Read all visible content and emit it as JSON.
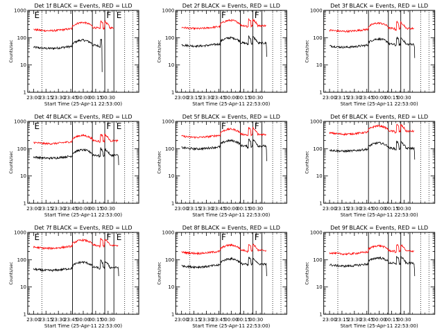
{
  "chart_data": [
    {
      "type": "line",
      "title": "Det 1f BLACK = Events, RED = LLD",
      "xlabel": "Start Time (25-Apr-11 22:53:00)",
      "ylabel": "Counts/sec",
      "yscale": "log",
      "ylim": [
        1,
        1000
      ],
      "ytick_labels": [
        "1",
        "10",
        "100",
        "1000"
      ],
      "x_tick_labels": [
        "23:00",
        "23:15",
        "23:30",
        "23:45",
        "00:00",
        "00:15",
        "00:30"
      ],
      "series": [
        {
          "name": "Events",
          "color": "#000000",
          "base": 45,
          "ends_at_min": 82,
          "end_drop": [
            48,
            5.5
          ]
        },
        {
          "name": "LLD",
          "color": "#ff0000",
          "base": 200,
          "ends_at_min": 97
        }
      ],
      "dotted_lines_min": [
        10,
        110,
        120
      ],
      "solid_lines_min": [
        47,
        71,
        86,
        97
      ],
      "markers": [
        {
          "text": "E",
          "x_min": 1
        },
        {
          "text": "F",
          "x_min": 88
        },
        {
          "text": "E",
          "x_min": 100
        }
      ]
    },
    {
      "type": "line",
      "title": "Det 2f BLACK = Events, RED = LLD",
      "xlabel": "Start Time (25-Apr-11 22:53:00)",
      "ylabel": "Counts/sec",
      "yscale": "log",
      "ylim": [
        1,
        1000
      ],
      "ytick_labels": [
        "1",
        "10",
        "100",
        "1000"
      ],
      "x_tick_labels": [
        "23:00",
        "23:15",
        "23:30",
        "23:45",
        "00:00",
        "00:15",
        "00:30"
      ],
      "series": [
        {
          "name": "Events",
          "color": "#000000",
          "base": 55,
          "ends_at_min": 102,
          "end_drop": [
            45,
            20
          ]
        },
        {
          "name": "LLD",
          "color": "#ff0000",
          "base": 240,
          "ends_at_min": 102
        }
      ],
      "dotted_lines_min": [
        10,
        110,
        120
      ],
      "solid_lines_min": [
        47,
        71,
        86,
        97
      ],
      "markers": [
        {
          "text": "F",
          "x_min": 48
        },
        {
          "text": "F",
          "x_min": 88
        }
      ]
    },
    {
      "type": "line",
      "title": "Det 3f BLACK = Events, RED = LLD",
      "xlabel": "Start Time (25-Apr-11 22:53:00)",
      "ylabel": "Counts/sec",
      "yscale": "log",
      "ylim": [
        1,
        1000
      ],
      "ytick_labels": [
        "1",
        "10",
        "100",
        "1000"
      ],
      "x_tick_labels": [
        "23:00",
        "23:15",
        "23:30",
        "23:45",
        "00:00",
        "00:15",
        "00:30"
      ],
      "series": [
        {
          "name": "Events",
          "color": "#000000",
          "base": 50,
          "ends_at_min": 102,
          "end_drop": [
            45,
            18
          ]
        },
        {
          "name": "LLD",
          "color": "#ff0000",
          "base": 190,
          "ends_at_min": 102
        }
      ],
      "dotted_lines_min": [
        10,
        110,
        120
      ],
      "solid_lines_min": [
        47,
        71,
        86,
        97
      ],
      "markers": []
    },
    {
      "type": "line",
      "title": "Det 4f BLACK = Events, RED = LLD",
      "xlabel": "Start Time (25-Apr-11 22:53:00)",
      "ylabel": "Counts/sec",
      "yscale": "log",
      "ylim": [
        1,
        1000
      ],
      "ytick_labels": [
        "1",
        "10",
        "100",
        "1000"
      ],
      "x_tick_labels": [
        "23:00",
        "23:15",
        "23:30",
        "23:45",
        "00:00",
        "00:15",
        "00:30"
      ],
      "series": [
        {
          "name": "Events",
          "color": "#000000",
          "base": 50,
          "ends_at_min": 102,
          "end_drop": [
            45,
            25
          ]
        },
        {
          "name": "LLD",
          "color": "#ff0000",
          "base": 170,
          "ends_at_min": 102
        }
      ],
      "dotted_lines_min": [
        10,
        110,
        120
      ],
      "solid_lines_min": [
        47,
        71,
        86,
        97
      ],
      "markers": [
        {
          "text": "E",
          "x_min": 1
        },
        {
          "text": "F",
          "x_min": 88
        },
        {
          "text": "E",
          "x_min": 100
        }
      ]
    },
    {
      "type": "line",
      "title": "Det 5f BLACK = Events, RED = LLD",
      "xlabel": "Start Time (25-Apr-11 22:53:00)",
      "ylabel": "Counts/sec",
      "yscale": "log",
      "ylim": [
        1,
        1000
      ],
      "ytick_labels": [
        "1",
        "10",
        "100",
        "1000"
      ],
      "x_tick_labels": [
        "23:00",
        "23:15",
        "23:30",
        "23:45",
        "00:00",
        "00:15",
        "00:30"
      ],
      "series": [
        {
          "name": "Events",
          "color": "#000000",
          "base": 110,
          "ends_at_min": 102,
          "end_drop": [
            90,
            35
          ]
        },
        {
          "name": "LLD",
          "color": "#ff0000",
          "base": 290,
          "ends_at_min": 102
        }
      ],
      "dotted_lines_min": [
        10,
        110,
        120
      ],
      "solid_lines_min": [
        47,
        71,
        86,
        97
      ],
      "markers": [
        {
          "text": "F",
          "x_min": 48
        },
        {
          "text": "F",
          "x_min": 88
        }
      ]
    },
    {
      "type": "line",
      "title": "Det 6f BLACK = Events, RED = LLD",
      "xlabel": "Start Time (25-Apr-11 22:53:00)",
      "ylabel": "Counts/sec",
      "yscale": "log",
      "ylim": [
        1,
        1000
      ],
      "ytick_labels": [
        "1",
        "10",
        "100",
        "1000"
      ],
      "x_tick_labels": [
        "23:00",
        "23:15",
        "23:30",
        "23:45",
        "00:00",
        "00:15",
        "00:30"
      ],
      "series": [
        {
          "name": "Events",
          "color": "#000000",
          "base": 90,
          "ends_at_min": 102,
          "end_drop": [
            75,
            40
          ]
        },
        {
          "name": "LLD",
          "color": "#ff0000",
          "base": 380,
          "ends_at_min": 102
        }
      ],
      "dotted_lines_min": [
        10,
        110,
        120
      ],
      "solid_lines_min": [
        47,
        71,
        86,
        97
      ],
      "markers": []
    },
    {
      "type": "line",
      "title": "Det 7f BLACK = Events, RED = LLD",
      "xlabel": "Start Time (25-Apr-11 22:53:00)",
      "ylabel": "Counts/sec",
      "yscale": "log",
      "ylim": [
        1,
        1000
      ],
      "ytick_labels": [
        "1",
        "10",
        "100",
        "1000"
      ],
      "x_tick_labels": [
        "23:00",
        "23:15",
        "23:30",
        "23:45",
        "00:00",
        "00:15",
        "00:30"
      ],
      "series": [
        {
          "name": "Events",
          "color": "#000000",
          "base": 45,
          "ends_at_min": 102,
          "end_drop": [
            40,
            25
          ]
        },
        {
          "name": "LLD",
          "color": "#ff0000",
          "base": 290,
          "ends_at_min": 102
        }
      ],
      "dotted_lines_min": [
        10,
        110,
        120
      ],
      "solid_lines_min": [
        47,
        71,
        86,
        97
      ],
      "markers": [
        {
          "text": "E",
          "x_min": 1
        },
        {
          "text": "F",
          "x_min": 88
        },
        {
          "text": "E",
          "x_min": 100
        }
      ]
    },
    {
      "type": "line",
      "title": "Det 8f BLACK = Events, RED = LLD",
      "xlabel": "Start Time (25-Apr-11 22:53:00)",
      "ylabel": "Counts/sec",
      "yscale": "log",
      "ylim": [
        1,
        1000
      ],
      "ytick_labels": [
        "1",
        "10",
        "100",
        "1000"
      ],
      "x_tick_labels": [
        "23:00",
        "23:15",
        "23:30",
        "23:45",
        "00:00",
        "00:15",
        "00:30"
      ],
      "series": [
        {
          "name": "Events",
          "color": "#000000",
          "base": 60,
          "ends_at_min": 102,
          "end_drop": [
            45,
            25
          ]
        },
        {
          "name": "LLD",
          "color": "#ff0000",
          "base": 190,
          "ends_at_min": 102
        }
      ],
      "dotted_lines_min": [
        10,
        110,
        120
      ],
      "solid_lines_min": [
        47,
        71,
        86,
        97
      ],
      "markers": [
        {
          "text": "F",
          "x_min": 48
        },
        {
          "text": "F",
          "x_min": 88
        }
      ]
    },
    {
      "type": "line",
      "title": "Det 9f BLACK = Events, RED = LLD",
      "xlabel": "Start Time (25-Apr-11 22:53:00)",
      "ylabel": "Counts/sec",
      "yscale": "log",
      "ylim": [
        1,
        1000
      ],
      "ytick_labels": [
        "1",
        "10",
        "100",
        "1000"
      ],
      "x_tick_labels": [
        "23:00",
        "23:15",
        "23:30",
        "23:45",
        "00:00",
        "00:15",
        "00:30"
      ],
      "series": [
        {
          "name": "Events",
          "color": "#000000",
          "base": 65,
          "ends_at_min": 102,
          "end_drop": [
            45,
            25
          ]
        },
        {
          "name": "LLD",
          "color": "#ff0000",
          "base": 180,
          "ends_at_min": 102
        }
      ],
      "dotted_lines_min": [
        10,
        110,
        120
      ],
      "solid_lines_min": [
        47,
        71,
        86,
        97
      ],
      "markers": []
    }
  ]
}
